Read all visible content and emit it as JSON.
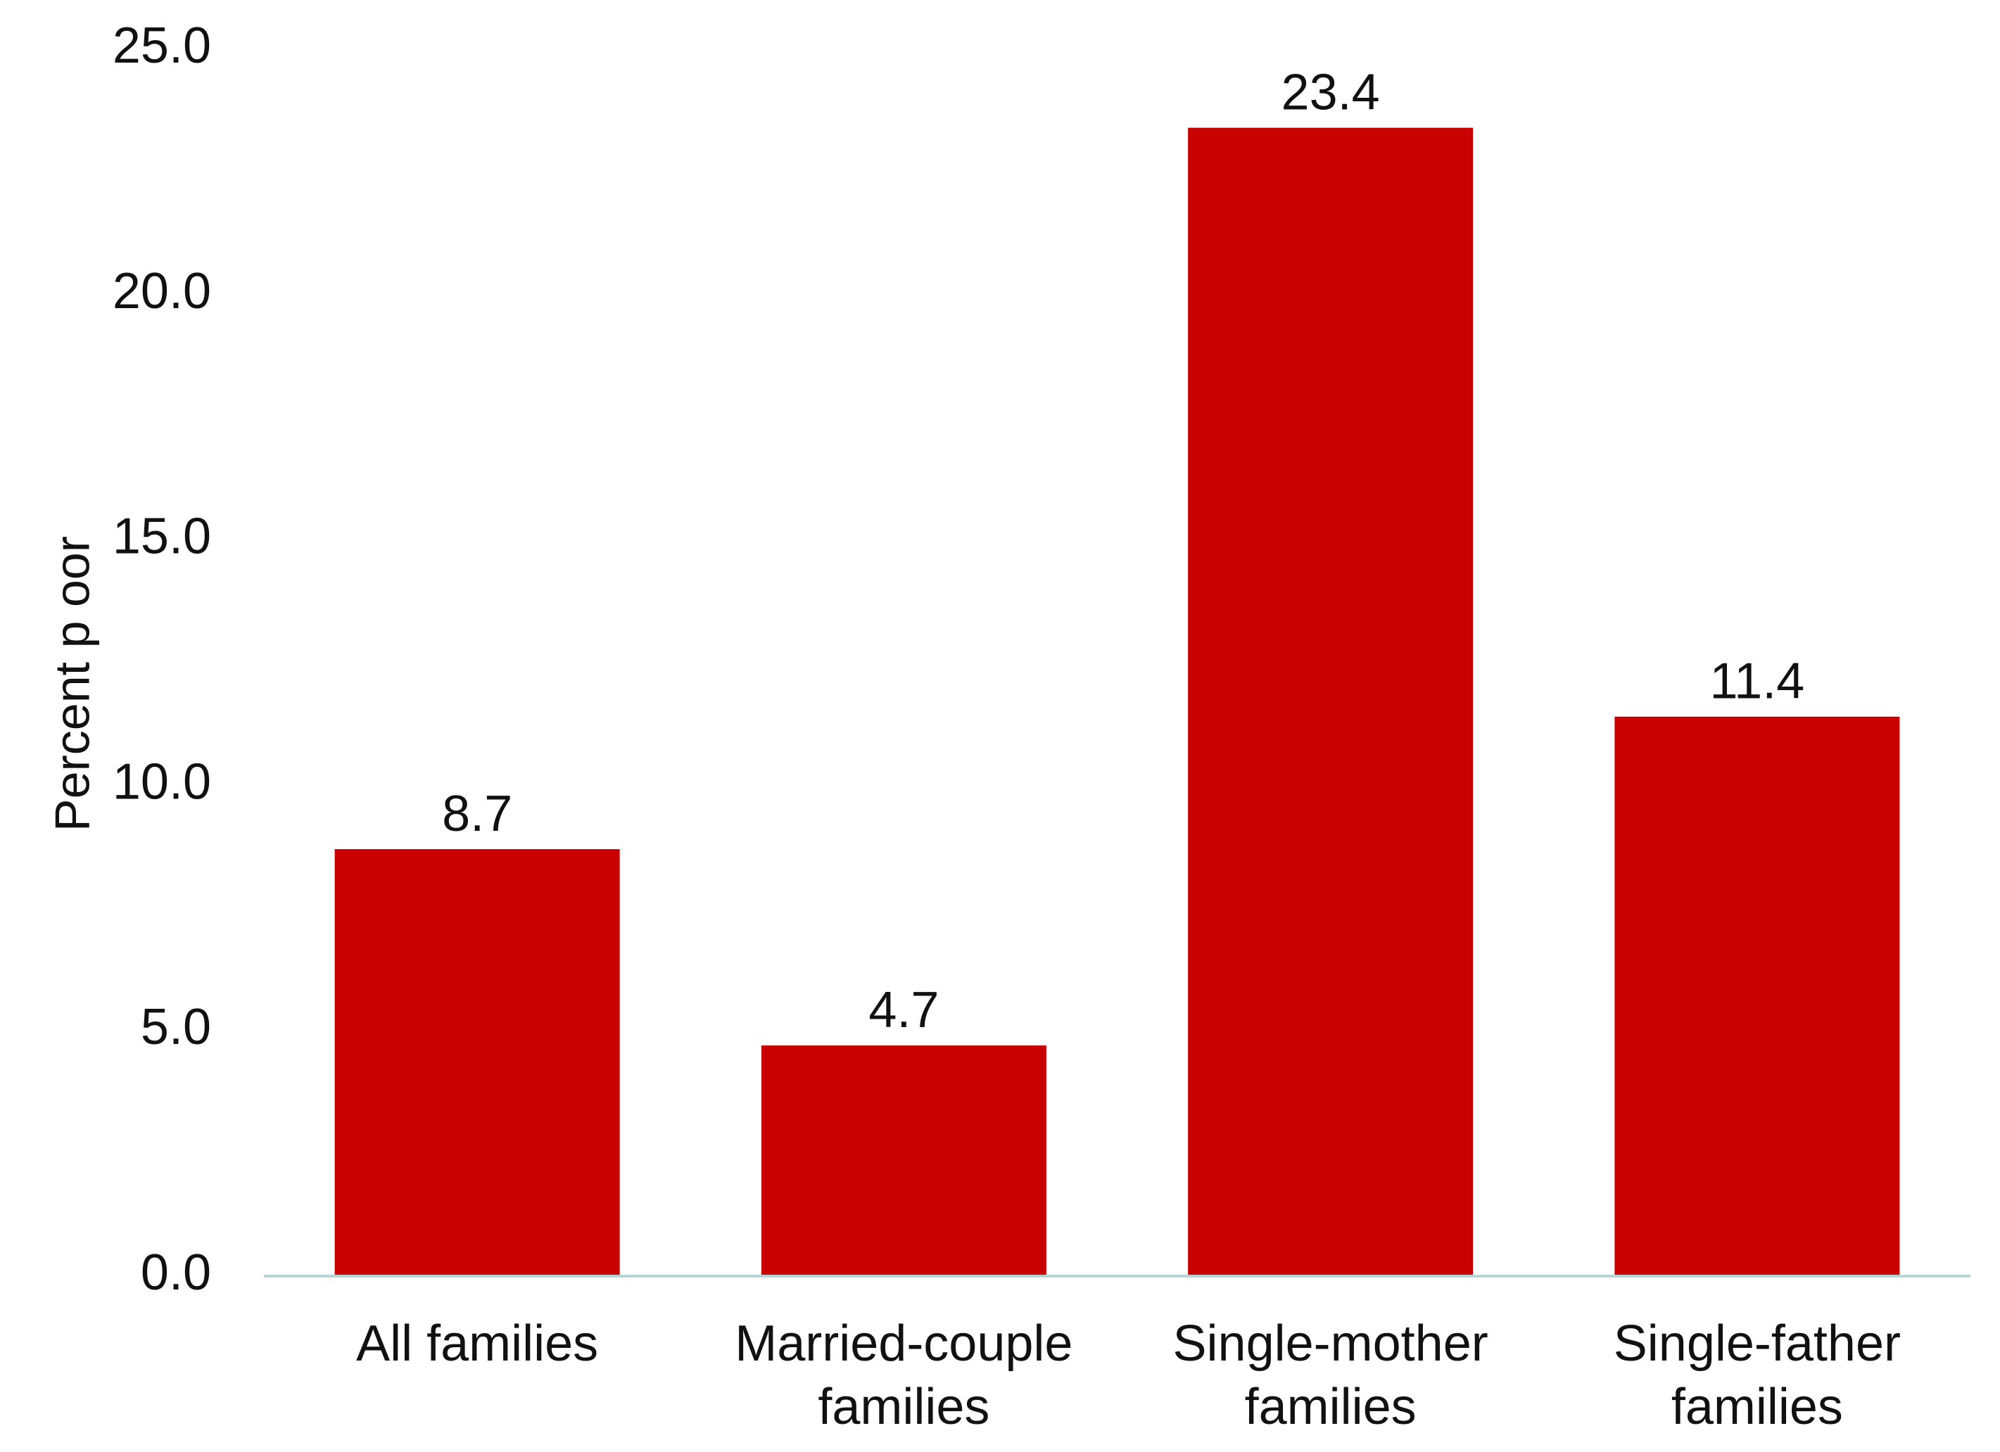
{
  "chart_data": {
    "type": "bar",
    "title": "",
    "xlabel": "",
    "ylabel": "Percent p oor",
    "categories": [
      [
        "All families"
      ],
      [
        "Married-couple",
        "families"
      ],
      [
        "Single-mother",
        "families"
      ],
      [
        "Single-father",
        "families"
      ]
    ],
    "values": [
      8.7,
      4.7,
      23.4,
      11.4
    ],
    "data_labels": [
      "8.7",
      "4.7",
      "23.4",
      "11.4"
    ],
    "ylim": [
      0,
      25
    ],
    "yticks": [
      0,
      5,
      10,
      15,
      20,
      25
    ],
    "ytick_labels": [
      "0.0",
      "5.0",
      "10.0",
      "15.0",
      "20.0",
      "25.0"
    ],
    "grid": false,
    "legend": "none",
    "colors": {
      "bar": "#c80000",
      "axis": "#b7d3d3",
      "text": "#111111"
    }
  }
}
